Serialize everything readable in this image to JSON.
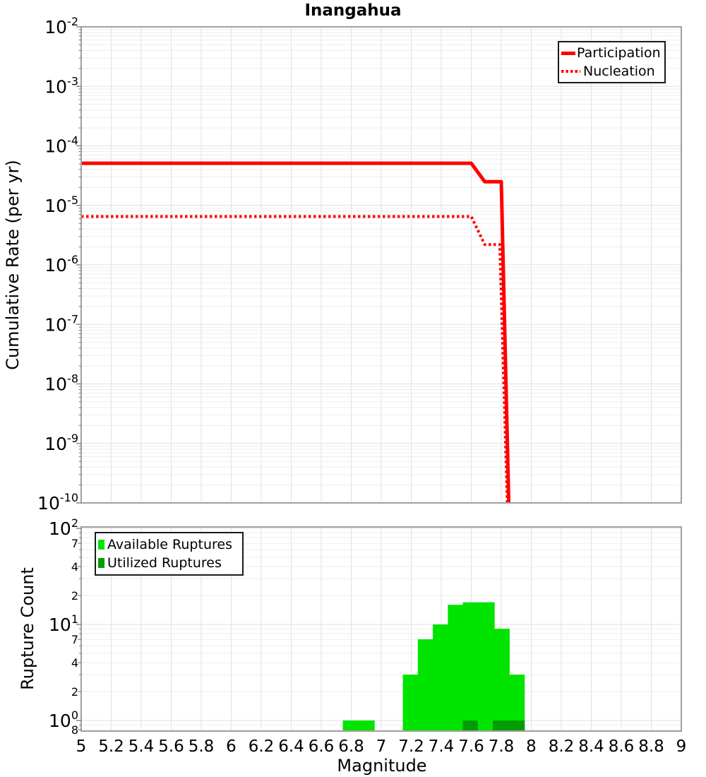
{
  "title": "Inangahua",
  "colors": {
    "line_red": "#ff0000",
    "available_green": "#00e400",
    "utilized_green": "#009e00",
    "grid_minor": "#ededed",
    "grid_major": "#e0e0e0",
    "plot_border": "#a0a0a0",
    "tick": "#777777",
    "text": "#000000"
  },
  "x_ticks": {
    "values": [
      5,
      5.2,
      5.4,
      5.6,
      5.8,
      6,
      6.2,
      6.4,
      6.6,
      6.8,
      7,
      7.2,
      7.4,
      7.6,
      7.8,
      8,
      8.2,
      8.4,
      8.6,
      8.8,
      9
    ],
    "labels": [
      "5",
      "5.2",
      "5.4",
      "5.6",
      "5.8",
      "6",
      "6.2",
      "6.4",
      "6.6",
      "6.8",
      "7",
      "7.2",
      "7.4",
      "7.6",
      "7.8",
      "8",
      "8.2",
      "8.4",
      "8.6",
      "8.8",
      "9"
    ]
  },
  "chart_data": [
    {
      "type": "line",
      "title": "Inangahua",
      "xlabel": "Magnitude",
      "ylabel": "Cumulative Rate (per yr)",
      "xlim": [
        5,
        9
      ],
      "ylim": [
        1e-10,
        0.01
      ],
      "y_scale": "log",
      "grid": true,
      "y_major_tick_exponents": [
        "-2",
        "-3",
        "-4",
        "-5",
        "-6",
        "-7",
        "-8",
        "-9",
        "-10"
      ],
      "legend": {
        "position": "top-right",
        "entries": [
          {
            "label": "Participation",
            "style": "solid",
            "color": "#ff0000"
          },
          {
            "label": "Nucleation",
            "style": "dotted",
            "color": "#ff0000"
          }
        ]
      },
      "series": [
        {
          "name": "Participation",
          "style": "solid",
          "color": "#ff0000",
          "width": 5,
          "points": [
            [
              5,
              5.1e-05
            ],
            [
              7.6,
              5.1e-05
            ],
            [
              7.69,
              2.5e-05
            ],
            [
              7.8,
              2.5e-05
            ],
            [
              7.85,
              1e-10
            ]
          ]
        },
        {
          "name": "Nucleation",
          "style": "dotted",
          "color": "#ff0000",
          "width": 4,
          "points": [
            [
              5,
              6.5e-06
            ],
            [
              7.6,
              6.5e-06
            ],
            [
              7.69,
              2.2e-06
            ],
            [
              7.79,
              2.2e-06
            ],
            [
              7.84,
              1e-10
            ]
          ]
        }
      ]
    },
    {
      "type": "bar",
      "xlabel": "Magnitude",
      "ylabel": "Rupture Count",
      "xlim": [
        5,
        9
      ],
      "ylim": [
        0.8,
        100
      ],
      "y_scale": "log",
      "grid": true,
      "bar_width_mag": 0.09,
      "y_major_tick_exponents": [
        "2",
        "1",
        "0"
      ],
      "y_minor_tick_labels": [
        {
          "value": 70,
          "label": "7"
        },
        {
          "value": 40,
          "label": "4"
        },
        {
          "value": 20,
          "label": "2"
        },
        {
          "value": 7,
          "label": "7"
        },
        {
          "value": 4,
          "label": "4"
        },
        {
          "value": 2,
          "label": "2"
        },
        {
          "value": 0.8,
          "label": "8"
        }
      ],
      "legend": {
        "position": "top-left",
        "entries": [
          {
            "label": "Available Ruptures",
            "color": "#00e400"
          },
          {
            "label": "Utilized Ruptures",
            "color": "#009e00"
          }
        ]
      },
      "categories": [
        6.85,
        7.25,
        7.35,
        7.45,
        7.55,
        7.65,
        7.75,
        7.85
      ],
      "series": [
        {
          "name": "Available Ruptures",
          "color": "#00e400",
          "values": [
            1,
            3,
            7,
            10,
            16,
            17,
            9,
            3
          ]
        },
        {
          "name": "Utilized Ruptures",
          "color": "#009e00",
          "values": [
            0,
            0,
            0,
            0,
            0,
            1,
            0,
            1
          ]
        }
      ]
    }
  ]
}
